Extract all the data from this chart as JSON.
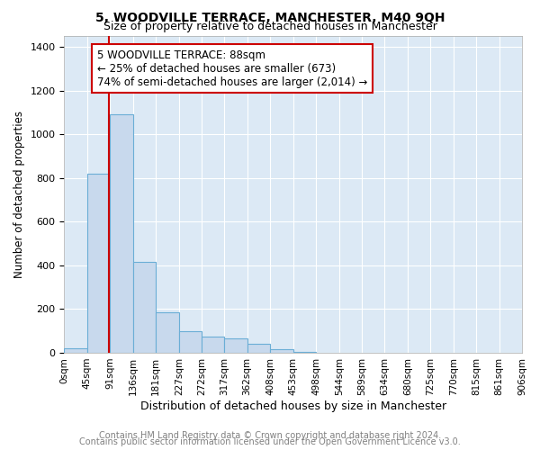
{
  "title": "5, WOODVILLE TERRACE, MANCHESTER, M40 9QH",
  "subtitle": "Size of property relative to detached houses in Manchester",
  "xlabel": "Distribution of detached houses by size in Manchester",
  "ylabel": "Number of detached properties",
  "footnote1": "Contains HM Land Registry data © Crown copyright and database right 2024.",
  "footnote2": "Contains public sector information licensed under the Open Government Licence v3.0.",
  "property_size": 88,
  "annotation_line1": "5 WOODVILLE TERRACE: 88sqm",
  "annotation_line2": "← 25% of detached houses are smaller (673)",
  "annotation_line3": "74% of semi-detached houses are larger (2,014) →",
  "bar_color": "#c8d9ed",
  "bar_edge_color": "#6baed6",
  "line_color": "#cc0000",
  "annotation_box_color": "#cc0000",
  "background_color": "#dce9f5",
  "x_tick_labels": [
    "0sqm",
    "45sqm",
    "91sqm",
    "136sqm",
    "181sqm",
    "227sqm",
    "272sqm",
    "317sqm",
    "362sqm",
    "408sqm",
    "453sqm",
    "498sqm",
    "544sqm",
    "589sqm",
    "634sqm",
    "680sqm",
    "725sqm",
    "770sqm",
    "815sqm",
    "861sqm",
    "906sqm"
  ],
  "bar_heights": [
    20,
    820,
    1090,
    415,
    185,
    100,
    75,
    65,
    40,
    18,
    3,
    0,
    0,
    0,
    0,
    0,
    0,
    0,
    0,
    0
  ],
  "ylim": [
    0,
    1450
  ],
  "yticks": [
    0,
    200,
    400,
    600,
    800,
    1000,
    1200,
    1400
  ],
  "title_fontsize": 10,
  "subtitle_fontsize": 9,
  "xlabel_fontsize": 9,
  "ylabel_fontsize": 8.5,
  "tick_fontsize": 8,
  "annotation_fontsize": 8.5,
  "footnote_fontsize": 7
}
